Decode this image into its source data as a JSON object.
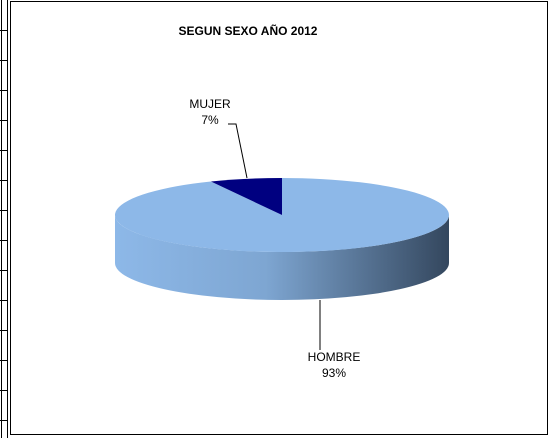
{
  "chart_data": {
    "type": "pie",
    "title": "SEGUN SEXO AÑO 2012",
    "categories": [
      "HOMBRE",
      "MUJER"
    ],
    "values": [
      93,
      7
    ],
    "value_labels": [
      "93%",
      "7%"
    ],
    "colors": [
      "#8db8e8",
      "#000080"
    ]
  }
}
